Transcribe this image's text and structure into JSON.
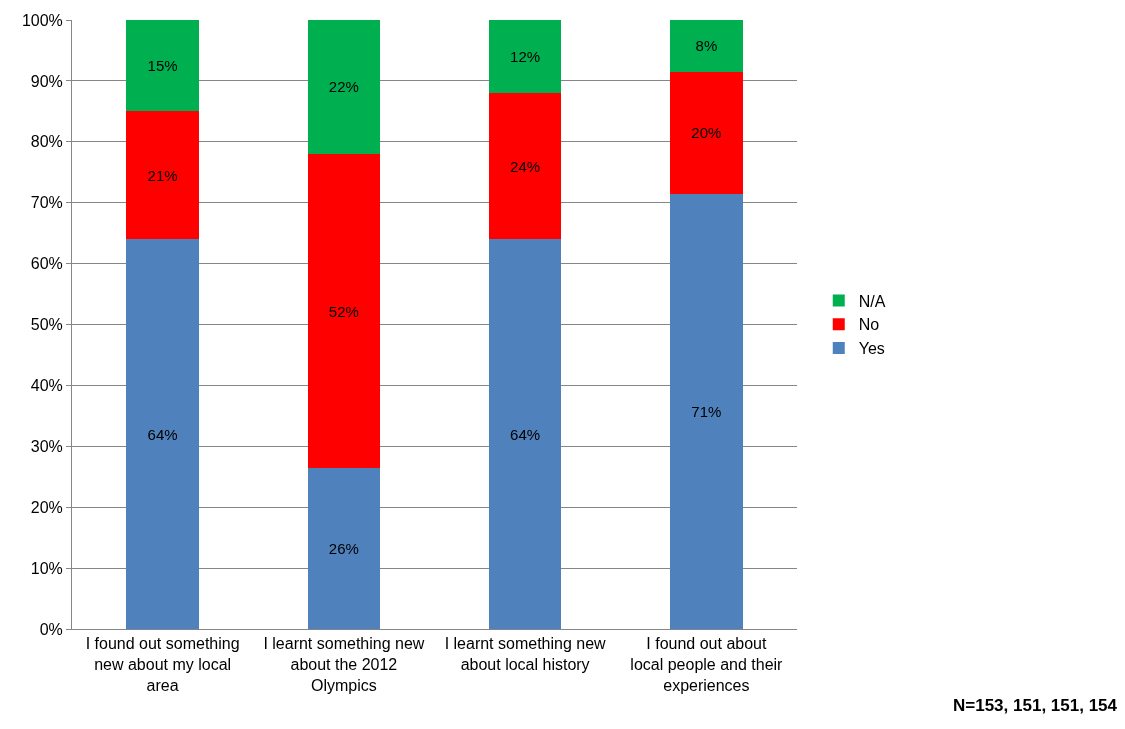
{
  "chart_data": {
    "type": "bar",
    "stacked": true,
    "categories": [
      "I found out something new about my local area",
      "I learnt something new about the 2012 Olympics",
      "I learnt something new about local history",
      "I found out about local people and their experiences"
    ],
    "series": [
      {
        "name": "Yes",
        "color": "#4f81bd",
        "values": [
          64,
          26.4,
          64,
          71.4
        ],
        "value_labels": [
          "64%",
          "26%",
          "64%",
          "71%"
        ]
      },
      {
        "name": "No",
        "color": "#ff0000",
        "values": [
          21,
          51.6,
          24,
          20.1
        ],
        "value_labels": [
          "21%",
          "52%",
          "24%",
          "20%"
        ]
      },
      {
        "name": "N/A",
        "color": "#00b050",
        "values": [
          15,
          22,
          12,
          8.5
        ],
        "value_labels": [
          "15%",
          "22%",
          "12%",
          "8%"
        ]
      }
    ],
    "ylim": [
      0,
      100
    ],
    "yticks": [
      {
        "value": 0,
        "label": "0%"
      },
      {
        "value": 10,
        "label": "10%"
      },
      {
        "value": 20,
        "label": "20%"
      },
      {
        "value": 30,
        "label": "30%"
      },
      {
        "value": 40,
        "label": "40%"
      },
      {
        "value": 50,
        "label": "50%"
      },
      {
        "value": 60,
        "label": "60%"
      },
      {
        "value": 70,
        "label": "70%"
      },
      {
        "value": 80,
        "label": "80%"
      },
      {
        "value": 90,
        "label": "90%"
      },
      {
        "value": 100,
        "label": "100%"
      }
    ],
    "grid": "y",
    "legend": "right",
    "annotations": [
      "N=153, 151, 151, 154"
    ]
  }
}
